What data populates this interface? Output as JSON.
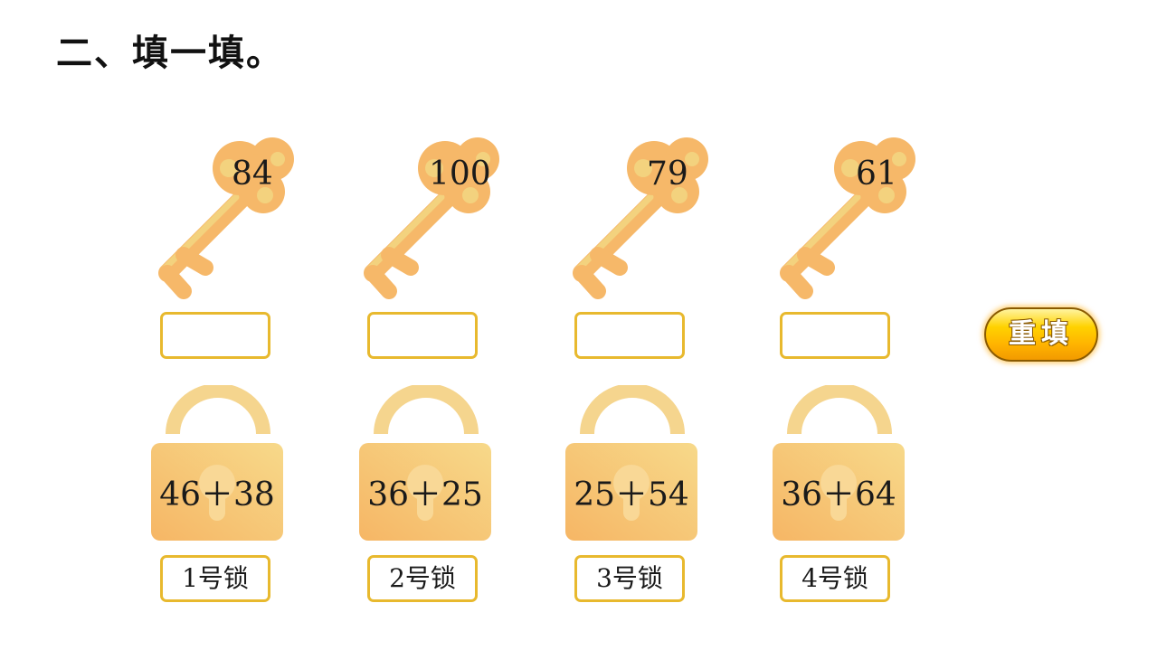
{
  "title": "二、填一填。",
  "keys": [
    {
      "number": "84"
    },
    {
      "number": "100"
    },
    {
      "number": "79"
    },
    {
      "number": "61"
    }
  ],
  "locks": [
    {
      "expression": "46＋38",
      "label": "1号锁",
      "answer": ""
    },
    {
      "expression": "36＋25",
      "label": "2号锁",
      "answer": ""
    },
    {
      "expression": "25＋54",
      "label": "3号锁",
      "answer": ""
    },
    {
      "expression": "36＋64",
      "label": "4号锁",
      "answer": ""
    }
  ],
  "reset_button": {
    "label": "重填"
  },
  "colors": {
    "key": "#f6b869",
    "key_highlight": "#f3d27e",
    "lock_body": "#f5c46e",
    "lock_shackle": "#f5d58e",
    "box_border": "#e8b92e",
    "button": "#ffc400"
  }
}
